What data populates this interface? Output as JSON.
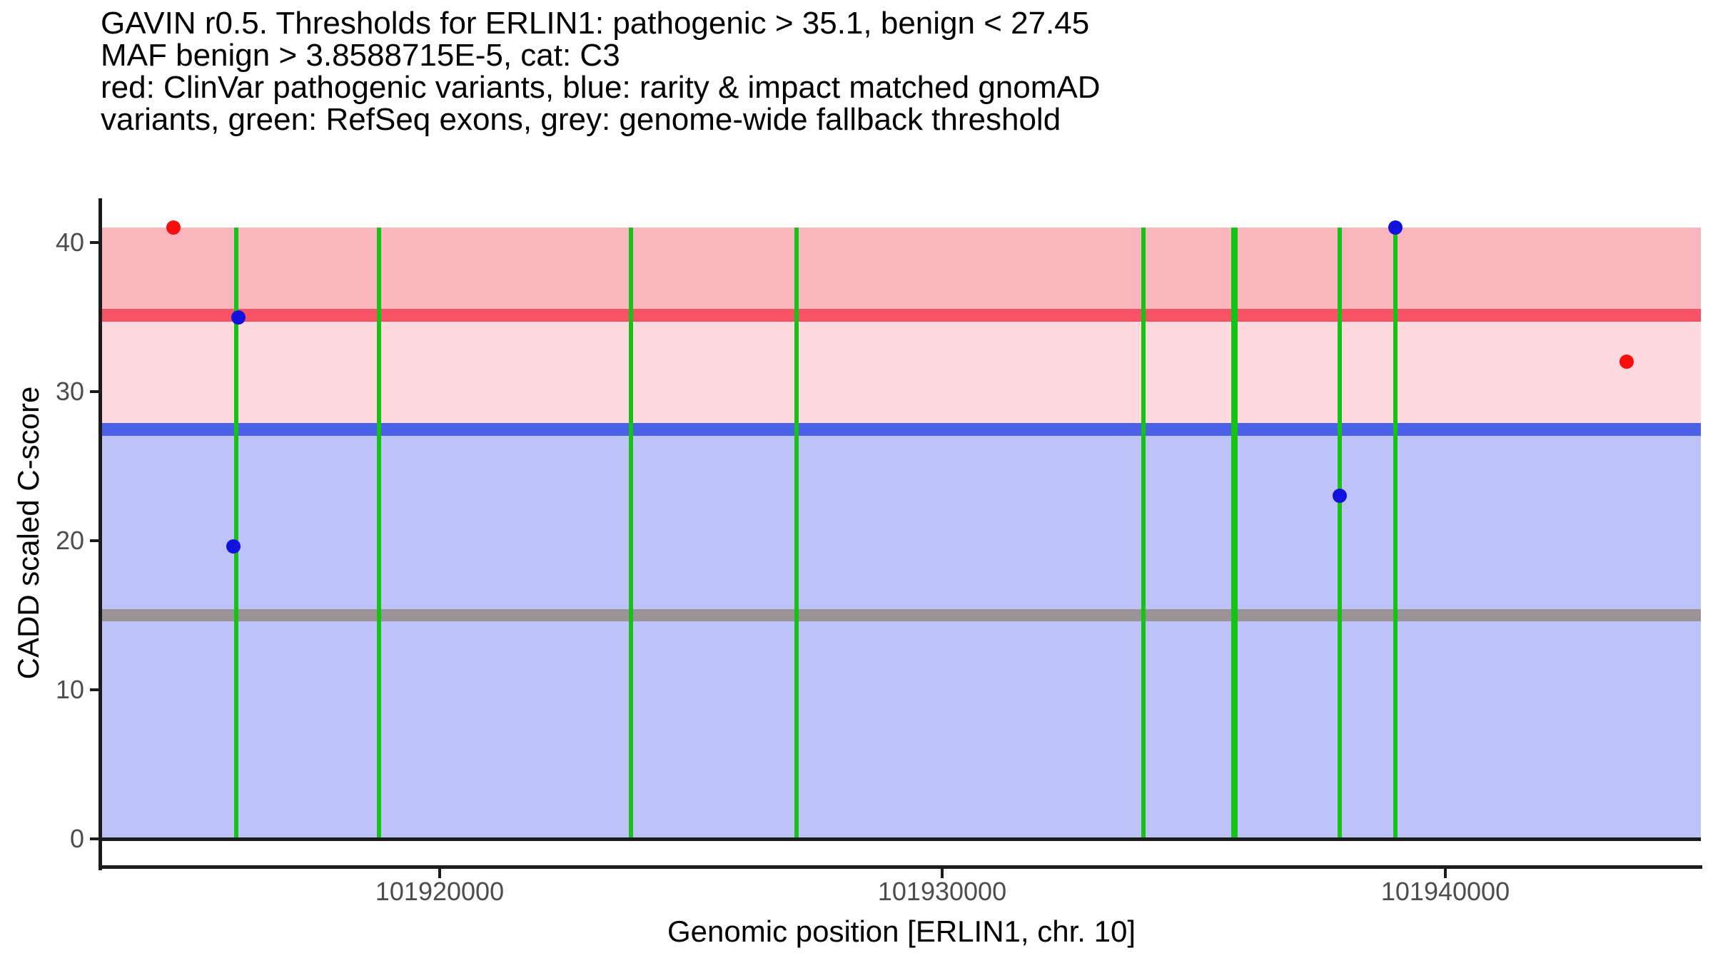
{
  "title": {
    "line1": "GAVIN r0.5. Thresholds for ERLIN1: pathogenic > 35.1, benign < 27.45",
    "line2": "MAF benign > 3.8588715E-5, cat: C3",
    "line3": "red: ClinVar pathogenic variants, blue: rarity & impact matched gnomAD",
    "line4": "variants, green: RefSeq exons, grey: genome-wide fallback threshold"
  },
  "colors": {
    "background": "#FFFFFF",
    "axis_line": "#1B1B1B",
    "tick_mark": "#1B1B1B",
    "tick_label": "#4D4D4D",
    "text": "#000000"
  },
  "chart_data": {
    "type": "scatter",
    "title": "GAVIN r0.5. Thresholds for ERLIN1: pathogenic > 35.1, benign < 27.45 MAF benign > 3.8588715E-5, cat: C3 red: ClinVar pathogenic variants, blue: rarity & impact matched gnomAD variants, green: RefSeq exons, grey: genome-wide fallback threshold",
    "xlabel": "Genomic position [ERLIN1, chr. 10]",
    "ylabel": "CADD scaled C-score",
    "xlim": [
      101913286,
      101945082
    ],
    "ylim": [
      -1.86,
      42.97
    ],
    "grid": false,
    "legend_position": "none",
    "x_ticks": [
      {
        "value": 101920000,
        "label": "101920000"
      },
      {
        "value": 101930000,
        "label": "101930000"
      },
      {
        "value": 101940000,
        "label": "101940000"
      }
    ],
    "y_ticks": [
      {
        "value": 0,
        "label": "0"
      },
      {
        "value": 10,
        "label": "10"
      },
      {
        "value": 20,
        "label": "20"
      },
      {
        "value": 30,
        "label": "30"
      },
      {
        "value": 40,
        "label": "40"
      }
    ],
    "thresholds": {
      "pathogenic_gt": 35.1,
      "benign_lt": 27.45,
      "maf_benign_gt": "3.8588715E-5",
      "category": "C3",
      "genome_wide_fallback": 15
    },
    "regions": [
      {
        "name": "pathogenic-region",
        "ymin": 35.1,
        "ymax": 41,
        "fill": "#FBB6BD"
      },
      {
        "name": "intermediate-region",
        "ymin": 27.45,
        "ymax": 35.1,
        "fill": "#FED9DF"
      },
      {
        "name": "benign-region",
        "ymin": 0,
        "ymax": 27.45,
        "fill": "#BDC3F8"
      }
    ],
    "hlines": [
      {
        "name": "pathogenic-threshold-line",
        "y": 35.1,
        "color": "#F85364",
        "thickness": 18
      },
      {
        "name": "benign-threshold-line",
        "y": 27.45,
        "color": "#4B61E8",
        "thickness": 18
      },
      {
        "name": "genome-wide-fallback-line",
        "y": 15,
        "color": "#9A9496",
        "thickness": 17
      }
    ],
    "zero_baseline": {
      "name": "zero-baseline",
      "y": 0,
      "color": "#1B1B1B",
      "thickness": 5
    },
    "exon_lines": {
      "color": "#15C315",
      "y_top": 41,
      "y_bottom": 0,
      "positions": [
        {
          "x": 101915950,
          "width": 6
        },
        {
          "x": 101918800,
          "width": 6
        },
        {
          "x": 101923800,
          "width": 6
        },
        {
          "x": 101927100,
          "width": 6
        },
        {
          "x": 101934000,
          "width": 6
        },
        {
          "x": 101935800,
          "width": 9
        },
        {
          "x": 101937900,
          "width": 6
        },
        {
          "x": 101939000,
          "width": 6
        }
      ]
    },
    "series": [
      {
        "name": "ClinVar pathogenic variants",
        "color": "#F90D0D",
        "points": [
          {
            "x": 101914700,
            "y": 41
          },
          {
            "x": 101943600,
            "y": 32
          }
        ]
      },
      {
        "name": "rarity & impact matched gnomAD variants",
        "color": "#1212DE",
        "points": [
          {
            "x": 101916000,
            "y": 35
          },
          {
            "x": 101915900,
            "y": 19.6
          },
          {
            "x": 101937900,
            "y": 23
          },
          {
            "x": 101939000,
            "y": 41
          }
        ]
      }
    ]
  }
}
